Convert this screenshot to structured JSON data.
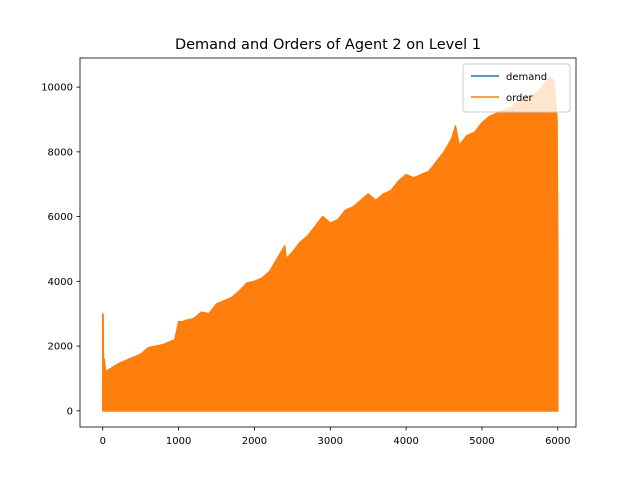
{
  "chart_data": {
    "type": "line",
    "title": "Demand and Orders of Agent 2 on Level 1",
    "xlabel": "",
    "ylabel": "",
    "xlim": [
      -300,
      6240
    ],
    "ylim": [
      -500,
      10900
    ],
    "x_ticks": [
      0,
      1000,
      2000,
      3000,
      4000,
      5000,
      6000
    ],
    "y_ticks": [
      0,
      2000,
      4000,
      6000,
      8000,
      10000
    ],
    "x_tick_labels": [
      "0",
      "1000",
      "2000",
      "3000",
      "4000",
      "5000",
      "6000"
    ],
    "y_tick_labels": [
      "0",
      "2000",
      "4000",
      "6000",
      "8000",
      "10000"
    ],
    "grid": false,
    "legend_position": "top-right",
    "series": [
      {
        "name": "demand",
        "color": "#1f77b4",
        "x": [
          0,
          1000,
          2000,
          3000,
          4000,
          5000,
          6000
        ],
        "y": [
          0,
          0,
          0,
          0,
          0,
          0,
          0
        ]
      },
      {
        "name": "order",
        "color": "#ff7f0e",
        "x": [
          0,
          5,
          10,
          20,
          40,
          60,
          100,
          200,
          300,
          400,
          500,
          600,
          700,
          800,
          900,
          950,
          1000,
          1050,
          1100,
          1200,
          1300,
          1400,
          1500,
          1600,
          1700,
          1800,
          1900,
          2000,
          2100,
          2200,
          2300,
          2400,
          2420,
          2500,
          2600,
          2700,
          2800,
          2900,
          3000,
          3100,
          3200,
          3300,
          3400,
          3500,
          3600,
          3700,
          3800,
          3900,
          4000,
          4100,
          4200,
          4300,
          4400,
          4500,
          4600,
          4650,
          4700,
          4800,
          4900,
          5000,
          5100,
          5200,
          5300,
          5400,
          5500,
          5600,
          5700,
          5800,
          5850,
          5900,
          5950,
          5990,
          6000
        ],
        "upper": [
          3000,
          2950,
          1000,
          1600,
          1100,
          1250,
          1300,
          1450,
          1550,
          1650,
          1750,
          1950,
          2000,
          2050,
          2150,
          2200,
          2750,
          2750,
          2800,
          2850,
          3050,
          3000,
          3300,
          3400,
          3500,
          3700,
          3950,
          4000,
          4100,
          4300,
          4700,
          5100,
          4700,
          4900,
          5200,
          5400,
          5700,
          6000,
          5800,
          5900,
          6200,
          6300,
          6500,
          6700,
          6500,
          6700,
          6800,
          7100,
          7300,
          7200,
          7300,
          7400,
          7700,
          8000,
          8400,
          8800,
          8200,
          8500,
          8600,
          8900,
          9100,
          9200,
          9300,
          9400,
          9600,
          9700,
          9800,
          10000,
          10200,
          10300,
          10200,
          9000,
          5000
        ],
        "lower": [
          0,
          0,
          0,
          0,
          0,
          0,
          0,
          0,
          0,
          0,
          0,
          0,
          0,
          0,
          0,
          0,
          0,
          0,
          0,
          0,
          0,
          0,
          0,
          0,
          0,
          0,
          0,
          0,
          0,
          0,
          0,
          0,
          0,
          0,
          0,
          0,
          0,
          0,
          0,
          0,
          0,
          0,
          0,
          0,
          0,
          0,
          0,
          0,
          0,
          0,
          0,
          0,
          0,
          0,
          0,
          0,
          0,
          0,
          0,
          0,
          0,
          0,
          0,
          0,
          0,
          0,
          0,
          0,
          0,
          0,
          0,
          0,
          0
        ]
      }
    ]
  }
}
